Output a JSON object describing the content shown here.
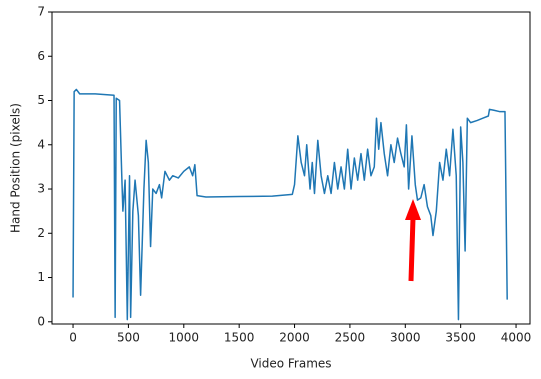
{
  "chart_data": {
    "type": "line",
    "x_label": "Video Frames",
    "y_label": "Hand Position (pixels)",
    "color": "#1f77b4",
    "xlim": [
      -190,
      4126
    ],
    "ylim": [
      -0.05,
      7
    ],
    "xticks": [
      0,
      500,
      1000,
      1500,
      2000,
      2500,
      3000,
      3500,
      4000
    ],
    "yticks": [
      0,
      1,
      2,
      3,
      4,
      5,
      6,
      7
    ],
    "grid": false,
    "x": [
      0,
      10,
      30,
      60,
      200,
      370,
      380,
      390,
      420,
      440,
      450,
      470,
      490,
      510,
      520,
      540,
      560,
      590,
      610,
      640,
      660,
      680,
      700,
      720,
      750,
      780,
      800,
      830,
      870,
      900,
      950,
      1000,
      1050,
      1080,
      1100,
      1120,
      1200,
      1500,
      1800,
      1980,
      2000,
      2030,
      2060,
      2090,
      2110,
      2140,
      2160,
      2180,
      2210,
      2240,
      2270,
      2300,
      2330,
      2360,
      2390,
      2420,
      2450,
      2480,
      2510,
      2540,
      2570,
      2600,
      2630,
      2660,
      2690,
      2720,
      2740,
      2760,
      2780,
      2810,
      2840,
      2870,
      2900,
      2930,
      2960,
      2990,
      3010,
      3030,
      3060,
      3090,
      3110,
      3140,
      3170,
      3200,
      3230,
      3250,
      3280,
      3310,
      3340,
      3370,
      3400,
      3430,
      3460,
      3480,
      3500,
      3520,
      3540,
      3560,
      3590,
      3650,
      3700,
      3750,
      3760,
      3800,
      3850,
      3900,
      3920
    ],
    "values": [
      0.55,
      5.2,
      5.25,
      5.15,
      5.15,
      5.12,
      0.1,
      5.05,
      5.0,
      3.3,
      2.5,
      3.2,
      0.05,
      3.3,
      0.1,
      2.5,
      3.2,
      2.4,
      0.6,
      3.0,
      4.1,
      3.6,
      1.7,
      3.0,
      2.9,
      3.1,
      2.8,
      3.4,
      3.2,
      3.3,
      3.25,
      3.4,
      3.5,
      3.3,
      3.55,
      2.85,
      2.82,
      2.83,
      2.84,
      2.88,
      3.1,
      4.2,
      3.6,
      3.3,
      4.0,
      3.0,
      3.6,
      2.9,
      4.1,
      3.3,
      2.9,
      3.3,
      2.9,
      3.6,
      3.0,
      3.5,
      3.0,
      3.9,
      3.0,
      3.7,
      3.2,
      3.8,
      3.2,
      3.9,
      3.3,
      3.5,
      4.6,
      3.9,
      4.5,
      3.8,
      3.3,
      4.0,
      3.6,
      4.15,
      3.8,
      3.5,
      4.45,
      3.0,
      4.2,
      3.1,
      2.75,
      2.8,
      3.1,
      2.6,
      2.4,
      1.95,
      2.5,
      3.6,
      3.2,
      3.9,
      3.3,
      4.35,
      3.3,
      0.05,
      4.4,
      3.6,
      1.6,
      4.6,
      4.5,
      4.55,
      4.6,
      4.65,
      4.8,
      4.78,
      4.75,
      4.75,
      0.5
    ]
  }
}
